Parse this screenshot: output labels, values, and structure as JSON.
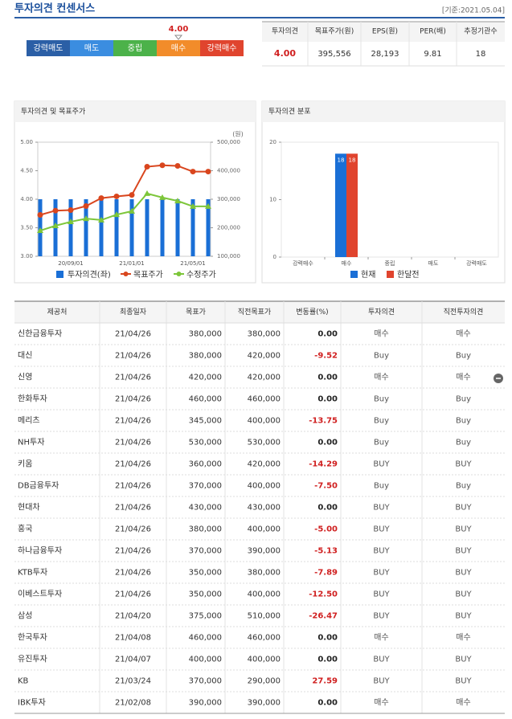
{
  "header": {
    "title": "투자의견 컨센서스",
    "date": "[기준:2021.05.04]"
  },
  "consensus": {
    "levels": [
      {
        "label": "강력매도",
        "color": "#2b5fa6"
      },
      {
        "label": "매도",
        "color": "#3b8de0"
      },
      {
        "label": "중립",
        "color": "#4cb24a"
      },
      {
        "label": "매수",
        "color": "#f28c2a"
      },
      {
        "label": "강력매수",
        "color": "#e0442e"
      }
    ],
    "score": {
      "value": 4,
      "label": "4.00"
    }
  },
  "summary": {
    "headers": [
      "투자의견",
      "목표주가(원)",
      "EPS(원)",
      "PER(배)",
      "추정기관수"
    ],
    "values": [
      "4.00",
      "395,556",
      "28,193",
      "9.81",
      "18"
    ]
  },
  "chart_data": [
    {
      "type": "combo",
      "title": "투자의견 및 목표주가",
      "y2_label": "(원)",
      "categories": [
        null,
        null,
        "20/09/01",
        null,
        null,
        null,
        "21/01/01",
        null,
        null,
        null,
        "21/05/01",
        null
      ],
      "series": [
        {
          "name": "투자의견(좌)",
          "type": "bar",
          "color": "#1a6fd6",
          "values": [
            4,
            4,
            4,
            4,
            4,
            4,
            4,
            4,
            4,
            4,
            4,
            4
          ]
        },
        {
          "name": "목표주가",
          "type": "line",
          "axis": "y2",
          "color": "#d9461e",
          "values": [
            245000,
            260000,
            262000,
            276000,
            304000,
            310000,
            315000,
            414000,
            419000,
            417000,
            397000,
            397000
          ]
        },
        {
          "name": "수정주가",
          "type": "line",
          "axis": "y2",
          "color": "#7dc63a",
          "values": [
            190000,
            207000,
            221000,
            232000,
            227000,
            246000,
            258000,
            320000,
            306000,
            294000,
            275000,
            275000
          ]
        }
      ],
      "ylim": [
        3,
        5
      ],
      "yticks": [
        {
          "value": 3,
          "label": "3.00"
        },
        {
          "value": 3.5,
          "label": "3.50"
        },
        {
          "value": 4,
          "label": "4.00"
        },
        {
          "value": 4.5,
          "label": "4.50"
        },
        {
          "value": 5,
          "label": "5.00"
        }
      ],
      "y2lim": [
        100000,
        500000
      ],
      "y2ticks": [
        {
          "value": 100000,
          "label": "100,000"
        },
        {
          "value": 200000,
          "label": "200,000"
        },
        {
          "value": 300000,
          "label": "300,000"
        },
        {
          "value": 400000,
          "label": "400,000"
        },
        {
          "value": 500000,
          "label": "500,000"
        }
      ]
    },
    {
      "type": "bar",
      "title": "투자의견 분포",
      "categories": [
        "강력매수",
        "매수",
        "중립",
        "매도",
        "강력매도"
      ],
      "series": [
        {
          "name": "현재",
          "color": "#1a6fd6",
          "values": [
            0,
            18,
            0,
            0,
            0
          ]
        },
        {
          "name": "한달전",
          "color": "#e0442e",
          "values": [
            0,
            18,
            0,
            0,
            0
          ]
        }
      ],
      "ylim": [
        0,
        20
      ],
      "yticks": [
        0,
        10,
        20
      ]
    }
  ],
  "table": {
    "headers": [
      "제공처",
      "최종일자",
      "목표가",
      "직전목표가",
      "변동률(%)",
      "투자의견",
      "직전투자의견"
    ],
    "rows": [
      [
        "신한금융투자",
        "21/04/26",
        "380,000",
        "380,000",
        "0.00",
        "매수",
        "매수"
      ],
      [
        "대신",
        "21/04/26",
        "380,000",
        "420,000",
        "-9.52",
        "Buy",
        "Buy"
      ],
      [
        "신영",
        "21/04/26",
        "420,000",
        "420,000",
        "0.00",
        "매수",
        "매수"
      ],
      [
        "한화투자",
        "21/04/26",
        "460,000",
        "460,000",
        "0.00",
        "Buy",
        "Buy"
      ],
      [
        "메리츠",
        "21/04/26",
        "345,000",
        "400,000",
        "-13.75",
        "Buy",
        "Buy"
      ],
      [
        "NH투자",
        "21/04/26",
        "530,000",
        "530,000",
        "0.00",
        "Buy",
        "Buy"
      ],
      [
        "키움",
        "21/04/26",
        "360,000",
        "420,000",
        "-14.29",
        "BUY",
        "BUY"
      ],
      [
        "DB금융투자",
        "21/04/26",
        "370,000",
        "400,000",
        "-7.50",
        "Buy",
        "Buy"
      ],
      [
        "현대차",
        "21/04/26",
        "430,000",
        "430,000",
        "0.00",
        "BUY",
        "BUY"
      ],
      [
        "흥국",
        "21/04/26",
        "380,000",
        "400,000",
        "-5.00",
        "BUY",
        "BUY"
      ],
      [
        "하나금융투자",
        "21/04/26",
        "370,000",
        "390,000",
        "-5.13",
        "BUY",
        "BUY"
      ],
      [
        "KTB투자",
        "21/04/26",
        "350,000",
        "380,000",
        "-7.89",
        "BUY",
        "BUY"
      ],
      [
        "이베스트투자",
        "21/04/26",
        "350,000",
        "400,000",
        "-12.50",
        "BUY",
        "BUY"
      ],
      [
        "삼성",
        "21/04/20",
        "375,000",
        "510,000",
        "-26.47",
        "BUY",
        "BUY"
      ],
      [
        "한국투자",
        "21/04/08",
        "460,000",
        "460,000",
        "0.00",
        "매수",
        "매수"
      ],
      [
        "유진투자",
        "21/04/07",
        "400,000",
        "400,000",
        "0.00",
        "BUY",
        "BUY"
      ],
      [
        "KB",
        "21/03/24",
        "370,000",
        "290,000",
        "27.59",
        "BUY",
        "BUY"
      ],
      [
        "IBK투자",
        "21/02/08",
        "390,000",
        "390,000",
        "0.00",
        "매수",
        "매수"
      ]
    ]
  }
}
